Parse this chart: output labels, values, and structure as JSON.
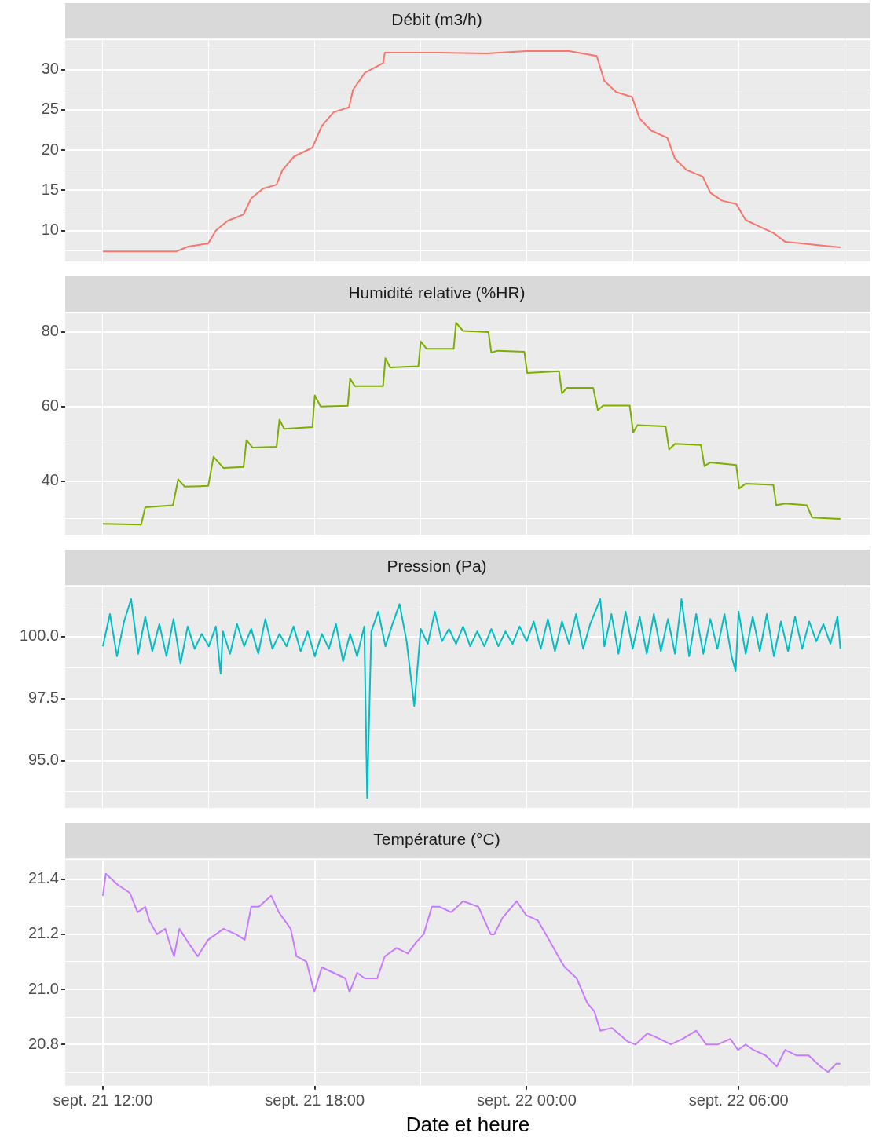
{
  "chart_data": [
    {
      "type": "line",
      "title": "Débit (m3/h)",
      "tick_labels": "y",
      "grid": true,
      "color": "#f8766d",
      "x": [
        "--09-21T12:00",
        "--09-21T14:05",
        "--09-21T14:25",
        "--09-21T14:59",
        "--09-21T15:12",
        "--09-21T15:32",
        "--09-21T15:59",
        "--09-21T16:12",
        "--09-21T16:32",
        "--09-21T16:55",
        "--09-21T17:05",
        "--09-21T17:25",
        "--09-21T17:56",
        "--09-21T18:12",
        "--09-21T18:32",
        "--09-21T18:58",
        "--09-21T19:05",
        "--09-21T19:25",
        "--09-21T19:56",
        "--09-21T19:59",
        "--09-21T21:32",
        "--09-21T22:52",
        "--09-21T23:59",
        "--09-22T01:12",
        "--09-22T01:59",
        "--09-22T02:12",
        "--09-22T02:32",
        "--09-22T02:59",
        "--09-22T03:12",
        "--09-22T03:32",
        "--09-22T03:59",
        "--09-22T04:12",
        "--09-22T04:32",
        "--09-22T04:59",
        "--09-22T05:12",
        "--09-22T05:32",
        "--09-22T05:56",
        "--09-22T06:12",
        "--09-22T06:32",
        "--09-22T06:59",
        "--09-22T07:19",
        "--09-22T08:12",
        "--09-22T08:53"
      ],
      "values": [
        7.4,
        7.4,
        8,
        8.4,
        10,
        11.2,
        12,
        14,
        15.2,
        15.7,
        17.5,
        19.2,
        20.3,
        23,
        24.7,
        25.3,
        27.5,
        29.6,
        30.8,
        32.1,
        32.1,
        32,
        32.3,
        32.3,
        31.7,
        28.6,
        27.2,
        26.6,
        23.9,
        22.4,
        21.5,
        18.9,
        17.5,
        16.7,
        14.7,
        13.7,
        13.3,
        11.3,
        10.6,
        9.7,
        8.6,
        8.2,
        7.9
      ],
      "xlim": [
        "--09-21T10:56",
        "--09-22T09:44"
      ],
      "xticks": [
        {
          "value": "--09-21T12:00",
          "label": null
        },
        {
          "value": "--09-21T15:00",
          "label": null
        },
        {
          "value": "--09-21T18:00",
          "label": null
        },
        {
          "value": "--09-21T21:00",
          "label": null
        },
        {
          "value": "--09-22T00:00",
          "label": null
        },
        {
          "value": "--09-22T03:00",
          "label": null
        },
        {
          "value": "--09-22T06:00",
          "label": null
        },
        {
          "value": "--09-22T09:00",
          "label": null
        }
      ],
      "ylim": [
        6.15,
        33.65
      ],
      "yticks": [
        {
          "value": 7.5,
          "label": null
        },
        10,
        {
          "value": 12.5,
          "label": null
        },
        15,
        {
          "value": 17.5,
          "label": null
        },
        20,
        {
          "value": 22.5,
          "label": null
        },
        25,
        {
          "value": 27.5,
          "label": null
        },
        30,
        {
          "value": 32.5,
          "label": null
        }
      ]
    },
    {
      "type": "line",
      "title": "Humidité relative (%HR)",
      "tick_labels": "y",
      "grid": true,
      "color": "#7cae00",
      "x": [
        "--09-21T12:00",
        "--09-21T13:05",
        "--09-21T13:12",
        "--09-21T13:59",
        "--09-21T14:08",
        "--09-21T14:19",
        "--09-21T14:59",
        "--09-21T15:08",
        "--09-21T15:25",
        "--09-21T15:59",
        "--09-21T16:04",
        "--09-21T16:14",
        "--09-21T16:55",
        "--09-21T17:00",
        "--09-21T17:08",
        "--09-21T17:56",
        "--09-21T18:00",
        "--09-21T18:10",
        "--09-21T18:56",
        "--09-21T19:00",
        "--09-21T19:08",
        "--09-21T19:56",
        "--09-21T20:00",
        "--09-21T20:08",
        "--09-21T20:56",
        "--09-21T21:00",
        "--09-21T21:10",
        "--09-21T21:56",
        "--09-21T22:00",
        "--09-21T22:12",
        "--09-21T22:55",
        "--09-21T23:00",
        "--09-21T23:11",
        "--09-21T23:56",
        "--09-22T00:01",
        "--09-22T00:55",
        "--09-22T01:00",
        "--09-22T01:08",
        "--09-22T01:53",
        "--09-22T02:01",
        "--09-22T02:10",
        "--09-22T02:55",
        "--09-22T03:01",
        "--09-22T03:08",
        "--09-22T03:56",
        "--09-22T04:02",
        "--09-22T04:12",
        "--09-22T04:56",
        "--09-22T05:02",
        "--09-22T05:12",
        "--09-22T05:56",
        "--09-22T06:01",
        "--09-22T06:12",
        "--09-22T06:59",
        "--09-22T07:04",
        "--09-22T07:19",
        "--09-22T07:56",
        "--09-22T08:05",
        "--09-22T08:53"
      ],
      "values": [
        28.5,
        28.3,
        33,
        33.5,
        40.5,
        38.5,
        38.7,
        46.5,
        43.5,
        43.8,
        51,
        49,
        49.2,
        56.5,
        54,
        54.5,
        63,
        60,
        60.2,
        67.5,
        65.5,
        65.5,
        73,
        70.5,
        70.8,
        77.5,
        75.5,
        75.5,
        82.5,
        80.3,
        80,
        74.5,
        75,
        74.7,
        69,
        69.5,
        63.5,
        65,
        65,
        59,
        60.3,
        60.3,
        53,
        55,
        54.7,
        48.5,
        50,
        49.7,
        44,
        45,
        44.3,
        38,
        39.3,
        39,
        33.5,
        34,
        33.5,
        30.2,
        29.8
      ],
      "xlim": [
        "--09-21T10:56",
        "--09-22T09:44"
      ],
      "xticks": [
        {
          "value": "--09-21T12:00",
          "label": null
        },
        {
          "value": "--09-21T15:00",
          "label": null
        },
        {
          "value": "--09-21T18:00",
          "label": null
        },
        {
          "value": "--09-21T21:00",
          "label": null
        },
        {
          "value": "--09-22T00:00",
          "label": null
        },
        {
          "value": "--09-22T03:00",
          "label": null
        },
        {
          "value": "--09-22T06:00",
          "label": null
        },
        {
          "value": "--09-22T09:00",
          "label": null
        }
      ],
      "ylim": [
        25.6,
        85
      ],
      "yticks": [
        {
          "value": 30,
          "label": null
        },
        40,
        {
          "value": 50,
          "label": null
        },
        60,
        {
          "value": 70,
          "label": null
        },
        80
      ]
    },
    {
      "type": "line",
      "title": "Pression (Pa)",
      "tick_labels": "y",
      "grid": true,
      "color": "#00bfc4",
      "x": [
        "--09-21T12:00",
        "--09-21T12:12",
        "--09-21T12:24",
        "--09-21T12:36",
        "--09-21T12:48",
        "--09-21T13:00",
        "--09-21T13:12",
        "--09-21T13:24",
        "--09-21T13:36",
        "--09-21T13:48",
        "--09-21T14:00",
        "--09-21T14:12",
        "--09-21T14:24",
        "--09-21T14:36",
        "--09-21T14:48",
        "--09-21T15:00",
        "--09-21T15:12",
        "--09-21T15:20",
        "--09-21T15:24",
        "--09-21T15:36",
        "--09-21T15:48",
        "--09-21T16:00",
        "--09-21T16:12",
        "--09-21T16:24",
        "--09-21T16:36",
        "--09-21T16:48",
        "--09-21T17:00",
        "--09-21T17:12",
        "--09-21T17:24",
        "--09-21T17:36",
        "--09-21T17:48",
        "--09-21T18:00",
        "--09-21T18:12",
        "--09-21T18:24",
        "--09-21T18:36",
        "--09-21T18:48",
        "--09-21T19:00",
        "--09-21T19:12",
        "--09-21T19:24",
        "--09-21T19:29",
        "--09-21T19:36",
        "--09-21T19:48",
        "--09-21T20:00",
        "--09-21T20:12",
        "--09-21T20:24",
        "--09-21T20:36",
        "--09-21T20:49",
        "--09-21T21:00",
        "--09-21T21:12",
        "--09-21T21:24",
        "--09-21T21:36",
        "--09-21T21:48",
        "--09-21T22:00",
        "--09-21T22:12",
        "--09-21T22:24",
        "--09-21T22:36",
        "--09-21T22:48",
        "--09-21T23:00",
        "--09-21T23:12",
        "--09-21T23:24",
        "--09-21T23:36",
        "--09-21T23:48",
        "--09-22T00:00",
        "--09-22T00:12",
        "--09-22T00:24",
        "--09-22T00:36",
        "--09-22T00:48",
        "--09-22T01:00",
        "--09-22T01:12",
        "--09-22T01:24",
        "--09-22T01:36",
        "--09-22T01:48",
        "--09-22T02:05",
        "--09-22T02:12",
        "--09-22T02:24",
        "--09-22T02:36",
        "--09-22T02:48",
        "--09-22T03:00",
        "--09-22T03:12",
        "--09-22T03:24",
        "--09-22T03:36",
        "--09-22T03:48",
        "--09-22T04:00",
        "--09-22T04:12",
        "--09-22T04:23",
        "--09-22T04:36",
        "--09-22T04:48",
        "--09-22T05:00",
        "--09-22T05:12",
        "--09-22T05:24",
        "--09-22T05:36",
        "--09-22T05:48",
        "--09-22T05:55",
        "--09-22T06:00",
        "--09-22T06:12",
        "--09-22T06:24",
        "--09-22T06:36",
        "--09-22T06:48",
        "--09-22T07:00",
        "--09-22T07:12",
        "--09-22T07:24",
        "--09-22T07:36",
        "--09-22T07:48",
        "--09-22T08:00",
        "--09-22T08:12",
        "--09-22T08:24",
        "--09-22T08:36",
        "--09-22T08:48",
        "--09-22T08:53"
      ],
      "values": [
        99.6,
        100.9,
        99.2,
        100.6,
        101.5,
        99.3,
        100.8,
        99.4,
        100.5,
        99.2,
        100.7,
        98.9,
        100.4,
        99.5,
        100.1,
        99.6,
        100.4,
        98.5,
        100.2,
        99.3,
        100.5,
        99.6,
        100.3,
        99.3,
        100.7,
        99.5,
        100.1,
        99.6,
        100.4,
        99.4,
        100.2,
        99.2,
        100.1,
        99.5,
        100.5,
        99.0,
        100.1,
        99.2,
        100.4,
        93.5,
        100.2,
        101.0,
        99.6,
        100.5,
        101.3,
        99.8,
        97.2,
        100.3,
        99.7,
        101.0,
        99.8,
        100.3,
        99.7,
        100.4,
        99.6,
        100.2,
        99.6,
        100.3,
        99.6,
        100.2,
        99.7,
        100.4,
        99.8,
        100.6,
        99.5,
        100.7,
        99.4,
        100.6,
        99.7,
        100.9,
        99.5,
        100.5,
        101.5,
        99.6,
        100.9,
        99.3,
        101.0,
        99.5,
        100.8,
        99.3,
        100.9,
        99.4,
        100.7,
        99.3,
        101.5,
        99.2,
        100.9,
        99.3,
        100.7,
        99.5,
        100.9,
        99.2,
        98.6,
        101.0,
        99.3,
        100.8,
        99.4,
        100.9,
        99.2,
        100.6,
        99.4,
        100.8,
        99.5,
        100.6,
        99.8,
        100.5,
        99.7,
        100.8,
        99.5
      ],
      "xlim": [
        "--09-21T10:56",
        "--09-22T09:44"
      ],
      "xticks": [
        {
          "value": "--09-21T12:00",
          "label": null
        },
        {
          "value": "--09-21T15:00",
          "label": null
        },
        {
          "value": "--09-21T18:00",
          "label": null
        },
        {
          "value": "--09-21T21:00",
          "label": null
        },
        {
          "value": "--09-22T00:00",
          "label": null
        },
        {
          "value": "--09-22T03:00",
          "label": null
        },
        {
          "value": "--09-22T06:00",
          "label": null
        },
        {
          "value": "--09-22T09:00",
          "label": null
        }
      ],
      "ylim": [
        93.1,
        102
      ],
      "yticks": [
        {
          "value": 93.75,
          "label": null
        },
        {
          "value": 95,
          "label": "95.0"
        },
        {
          "value": 96.25,
          "label": null
        },
        {
          "value": 97.5,
          "label": "97.5"
        },
        {
          "value": 98.75,
          "label": null
        },
        {
          "value": 100,
          "label": "100.0"
        },
        {
          "value": 101.25,
          "label": null
        }
      ]
    },
    {
      "type": "line",
      "title": "Température (°C)",
      "xlabel": "Date et heure",
      "grid": true,
      "color": "#c77cff",
      "x": [
        "--09-21T12:00",
        "--09-21T12:05",
        "--09-21T12:25",
        "--09-21T12:46",
        "--09-21T12:59",
        "--09-21T13:12",
        "--09-21T13:19",
        "--09-21T13:32",
        "--09-21T13:46",
        "--09-21T13:56",
        "--09-21T14:01",
        "--09-21T14:10",
        "--09-21T14:25",
        "--09-21T14:41",
        "--09-21T14:59",
        "--09-21T15:12",
        "--09-21T15:25",
        "--09-21T15:46",
        "--09-21T16:01",
        "--09-21T16:12",
        "--09-21T16:25",
        "--09-21T16:46",
        "--09-21T16:59",
        "--09-21T17:19",
        "--09-21T17:29",
        "--09-21T17:46",
        "--09-21T17:59",
        "--09-21T18:12",
        "--09-21T18:32",
        "--09-21T18:52",
        "--09-21T18:59",
        "--09-21T19:12",
        "--09-21T19:25",
        "--09-21T19:46",
        "--09-21T19:59",
        "--09-21T20:19",
        "--09-21T20:38",
        "--09-21T20:52",
        "--09-21T21:05",
        "--09-21T21:19",
        "--09-21T21:32",
        "--09-21T21:52",
        "--09-21T22:12",
        "--09-21T22:38",
        "--09-21T22:59",
        "--09-21T23:05",
        "--09-21T23:19",
        "--09-21T23:43",
        "--09-21T23:59",
        "--09-22T00:19",
        "--09-22T00:38",
        "--09-22T00:59",
        "--09-22T01:05",
        "--09-22T01:25",
        "--09-22T01:43",
        "--09-22T01:55",
        "--09-22T02:05",
        "--09-22T02:25",
        "--09-22T02:52",
        "--09-22T03:05",
        "--09-22T03:25",
        "--09-22T03:46",
        "--09-22T04:05",
        "--09-22T04:25",
        "--09-22T04:48",
        "--09-22T05:05",
        "--09-22T05:25",
        "--09-22T05:46",
        "--09-22T05:59",
        "--09-22T06:12",
        "--09-22T06:25",
        "--09-22T06:46",
        "--09-22T07:05",
        "--09-22T07:19",
        "--09-22T07:38",
        "--09-22T07:59",
        "--09-22T08:19",
        "--09-22T08:32",
        "--09-22T08:46",
        "--09-22T08:53"
      ],
      "values": [
        21.34,
        21.42,
        21.38,
        21.35,
        21.28,
        21.3,
        21.25,
        21.2,
        21.22,
        21.15,
        21.12,
        21.22,
        21.17,
        21.12,
        21.18,
        21.2,
        21.22,
        21.2,
        21.18,
        21.3,
        21.3,
        21.34,
        21.28,
        21.22,
        21.12,
        21.1,
        20.99,
        21.08,
        21.06,
        21.04,
        20.99,
        21.06,
        21.04,
        21.04,
        21.12,
        21.15,
        21.13,
        21.17,
        21.2,
        21.3,
        21.3,
        21.28,
        21.32,
        21.3,
        21.2,
        21.2,
        21.26,
        21.32,
        21.27,
        21.25,
        21.18,
        21.1,
        21.08,
        21.04,
        20.95,
        20.92,
        20.85,
        20.86,
        20.81,
        20.8,
        20.84,
        20.82,
        20.8,
        20.82,
        20.85,
        20.8,
        20.8,
        20.82,
        20.78,
        20.8,
        20.78,
        20.76,
        20.72,
        20.78,
        20.76,
        20.76,
        20.72,
        20.7,
        20.73,
        20.73
      ],
      "xlim": [
        "--09-21T10:56",
        "--09-22T09:44"
      ],
      "xticks": [
        {
          "value": "--09-21T12:00",
          "label": "sept. 21 12:00"
        },
        {
          "value": "--09-21T15:00",
          "label": null
        },
        {
          "value": "--09-21T18:00",
          "label": "sept. 21 18:00"
        },
        {
          "value": "--09-21T21:00",
          "label": null
        },
        {
          "value": "--09-22T00:00",
          "label": "sept. 22 00:00"
        },
        {
          "value": "--09-22T03:00",
          "label": null
        },
        {
          "value": "--09-22T06:00",
          "label": "sept. 22 06:00"
        },
        {
          "value": "--09-22T09:00",
          "label": null
        }
      ],
      "ylim": [
        20.65,
        21.47
      ],
      "yticks": [
        {
          "value": 20.7,
          "label": null
        },
        {
          "value": 20.8,
          "label": "20.8"
        },
        {
          "value": 20.9,
          "label": null
        },
        {
          "value": 21,
          "label": "21.0"
        },
        {
          "value": 21.1,
          "label": null
        },
        {
          "value": 21.2,
          "label": "21.2"
        },
        {
          "value": 21.3,
          "label": null
        },
        {
          "value": 21.4,
          "label": "21.4"
        }
      ]
    }
  ]
}
